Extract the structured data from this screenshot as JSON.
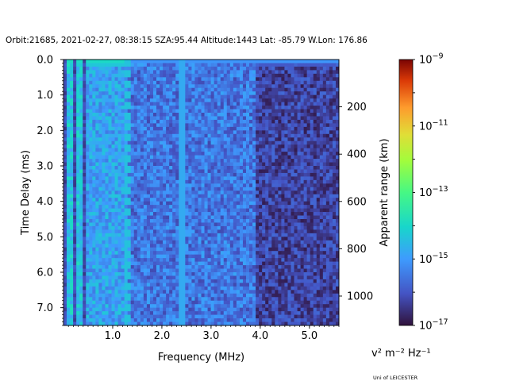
{
  "header": {
    "orbit_info": "Orbit:21685, 2021-02-27, 08:38:15 SZA:95.44 Altitude:1443 Lat: -85.79 W.Lon: 176.86"
  },
  "footer": {
    "credit": "Uni of LEICESTER"
  },
  "chart_data": {
    "type": "heatmap",
    "title": "Orbit:21685, 2021-02-27, 08:38:15 SZA:95.44 Altitude:1443 Lat: -85.79 W.Lon: 176.86",
    "xlabel": "Frequency (MHz)",
    "ylabel": "Time Delay (ms)",
    "ylabel_right": "Apparent range (km)",
    "xlim": [
      0.0,
      5.6
    ],
    "ylim": [
      7.5,
      0.0
    ],
    "x_ticks": [
      1.0,
      2.0,
      3.0,
      4.0,
      5.0
    ],
    "x_tick_labels": [
      "1.0",
      "2.0",
      "3.0",
      "4.0",
      "5.0"
    ],
    "y_ticks": [
      0.0,
      1.0,
      2.0,
      3.0,
      4.0,
      5.0,
      6.0,
      7.0
    ],
    "y_tick_labels": [
      "0.0",
      "1.0",
      "2.0",
      "3.0",
      "4.0",
      "5.0",
      "6.0",
      "7.0"
    ],
    "y2_ticks_km": [
      200,
      400,
      600,
      800,
      1000
    ],
    "y2_tick_labels": [
      "200",
      "400",
      "600",
      "800",
      "1000"
    ],
    "colorbar": {
      "label": "v² m⁻² Hz⁻¹",
      "scale": "log",
      "range": [
        1e-17,
        1e-09
      ],
      "colormap": "turbo",
      "tick_values": [
        1e-17,
        1e-15,
        1e-13,
        1e-11,
        1e-09
      ],
      "tick_exponents": [
        "−17",
        "−15",
        "−13",
        "−11",
        "−9"
      ],
      "tick_base": "10"
    },
    "features": {
      "bright_band_freq_max_mhz": 1.3,
      "vertical_line_freq_mhz": 2.4,
      "dim_region_freq_min_mhz": 3.9
    }
  }
}
